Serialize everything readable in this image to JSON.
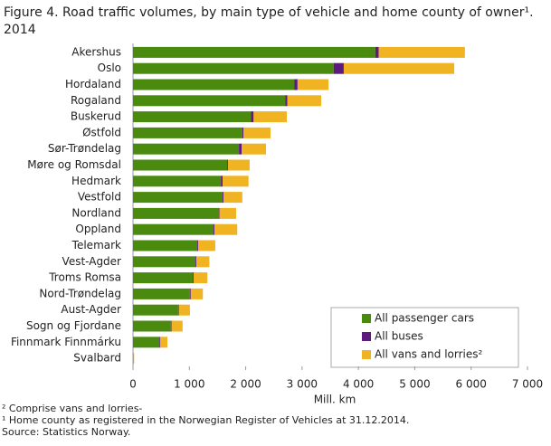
{
  "chart_data": {
    "type": "stacked-barh",
    "title": "Figure 4. Road traffic volumes, by main type of vehicle and home county of owner¹. 2014",
    "xlabel": "Mill. km",
    "categories": [
      "Akershus",
      "Oslo",
      "Hordaland",
      "Rogaland",
      "Buskerud",
      "Østfold",
      "Sør-Trøndelag",
      "Møre og Romsdal",
      "Hedmark",
      "Vestfold",
      "Nordland",
      "Oppland",
      "Telemark",
      "Vest-Agder",
      "Troms Romsa",
      "Nord-Trøndelag",
      "Aust-Agder",
      "Sogn og Fjordane",
      "Finnmark Finnmárku",
      "Svalbard"
    ],
    "series": [
      {
        "name": "All passenger cars",
        "color": "#4a8a0f",
        "values": [
          4300,
          3560,
          2860,
          2700,
          2090,
          1940,
          1880,
          1670,
          1560,
          1590,
          1520,
          1430,
          1140,
          1110,
          1060,
          1010,
          800,
          670,
          470,
          5
        ]
      },
      {
        "name": "All buses",
        "color": "#5e1b7e",
        "values": [
          60,
          180,
          60,
          40,
          50,
          20,
          50,
          15,
          30,
          15,
          15,
          15,
          15,
          15,
          15,
          15,
          15,
          15,
          15,
          0
        ]
      },
      {
        "name": "All vans and lorries²",
        "color": "#f0b321",
        "values": [
          1530,
          1960,
          550,
          600,
          590,
          480,
          430,
          385,
          460,
          335,
          295,
          405,
          305,
          230,
          245,
          215,
          195,
          195,
          125,
          15
        ]
      }
    ],
    "xlim": [
      0,
      7000
    ],
    "xticks": [
      0,
      {
        "value": 1000,
        "label": "1 000"
      },
      {
        "value": 2000,
        "label": "2 000"
      },
      {
        "value": 3000,
        "label": "3 000"
      },
      {
        "value": 4000,
        "label": "4 000"
      },
      {
        "value": 5000,
        "label": "5 000"
      },
      {
        "value": 6000,
        "label": "6 000"
      },
      {
        "value": 7000,
        "label": "7 000"
      }
    ],
    "notes": [
      "² Comprise vans and lorries-",
      "¹ Home county as registered in the Norwegian Register of Vehicles at 31.12.2014.",
      "Source: Statistics Norway."
    ],
    "legend": "lower right"
  }
}
